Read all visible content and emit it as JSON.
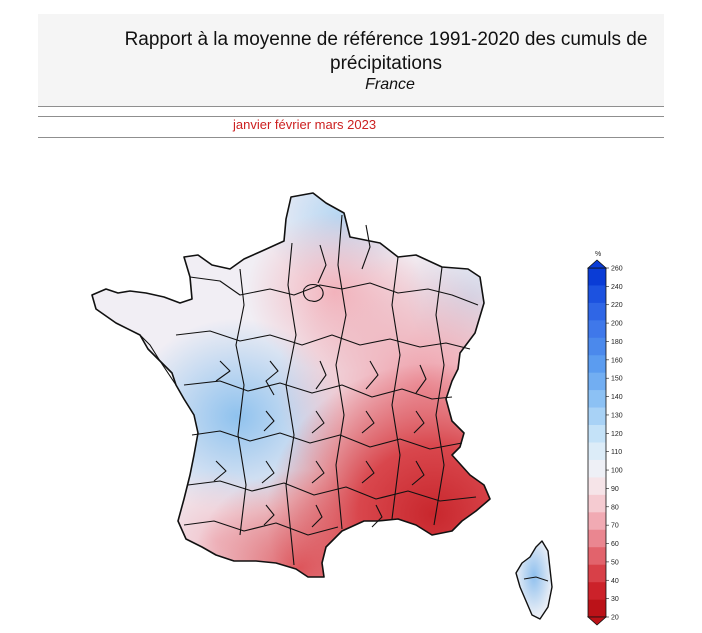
{
  "header": {
    "title_line1": "Rapport à la moyenne de référence 1991-2020 des cumuls de",
    "title_line2": "précipitations",
    "subtitle": "France"
  },
  "period": "janvier février mars 2023",
  "legend": {
    "unit": "%",
    "ticks": [
      "260",
      "240",
      "220",
      "200",
      "180",
      "160",
      "150",
      "140",
      "130",
      "120",
      "110",
      "100",
      "90",
      "80",
      "70",
      "60",
      "50",
      "40",
      "30",
      "20"
    ],
    "colors": [
      "#0a3cd6",
      "#1c52e0",
      "#2f66e6",
      "#3f78ea",
      "#4b89ec",
      "#5b9cf0",
      "#72aef2",
      "#8cc1f4",
      "#a8d2f6",
      "#c4e2f8",
      "#dcecf8",
      "#eef0f6",
      "#f6e4e8",
      "#f5cbd1",
      "#f1aab3",
      "#ea8690",
      "#e2636c",
      "#d84048",
      "#cc222a",
      "#bb1218"
    ]
  },
  "map": {
    "regions": [
      "France métropolitaine",
      "Corse"
    ],
    "colors": {
      "deficit_strong": "#d13a3f",
      "deficit": "#f0a3ad",
      "deficit_light": "#f6dde2",
      "neutral": "#f1eef4",
      "excess_light": "#dbe9f6",
      "excess": "#a9cdf0",
      "border": "#111111"
    }
  }
}
